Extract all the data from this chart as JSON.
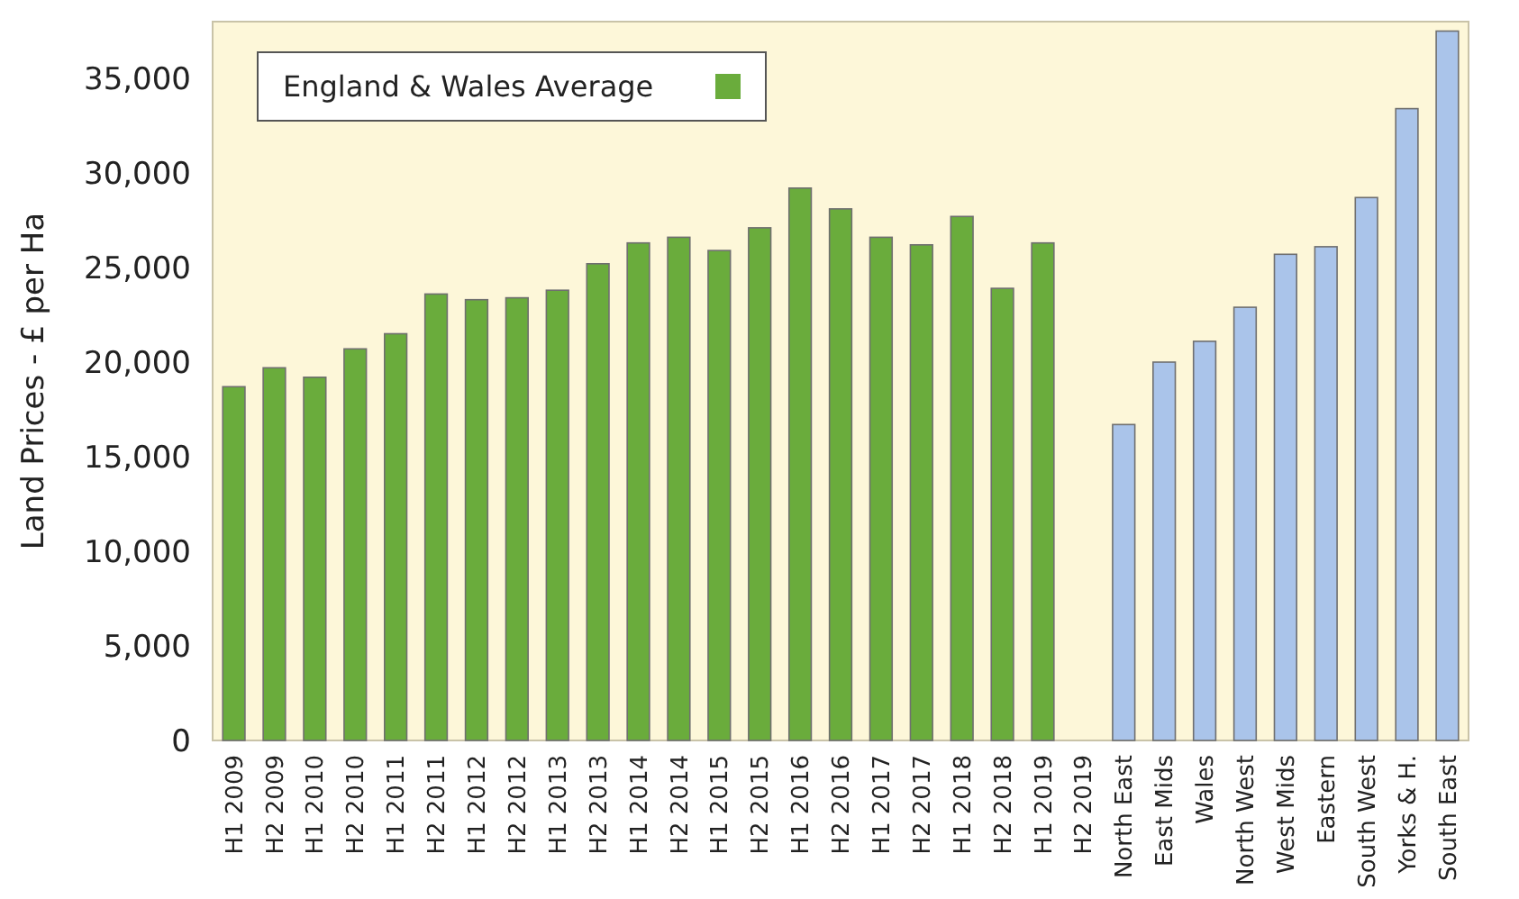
{
  "chart_data": {
    "type": "bar",
    "ylabel": "Land Prices - £ per Ha",
    "categories": [
      "H1 2009",
      "H2 2009",
      "H1 2010",
      "H2 2010",
      "H1 2011",
      "H2 2011",
      "H1 2012",
      "H2 2012",
      "H1 2013",
      "H2 2013",
      "H1 2014",
      "H2 2014",
      "H1 2015",
      "H2 2015",
      "H1 2016",
      "H2 2016",
      "H1 2017",
      "H2 2017",
      "H1 2018",
      "H2 2018",
      "H1 2019",
      "H2 2019",
      "North East",
      "East Mids",
      "Wales",
      "North West",
      "West Mids",
      "Eastern",
      "South West",
      "Yorks & H.",
      "South East"
    ],
    "series": [
      {
        "name": "England & Wales Average",
        "color": "#6aac3c",
        "values": [
          18700,
          19700,
          19200,
          20700,
          21500,
          23600,
          23300,
          23400,
          23800,
          25200,
          26300,
          26600,
          25900,
          27100,
          29200,
          28100,
          26600,
          26200,
          27700,
          23900,
          26300,
          null,
          null,
          null,
          null,
          null,
          null,
          null,
          null,
          null,
          null
        ]
      },
      {
        "color": "#aac4ea",
        "values": [
          null,
          null,
          null,
          null,
          null,
          null,
          null,
          null,
          null,
          null,
          null,
          null,
          null,
          null,
          null,
          null,
          null,
          null,
          null,
          null,
          null,
          null,
          16700,
          20000,
          21100,
          22900,
          25700,
          26100,
          28700,
          33400,
          37500
        ]
      }
    ],
    "ylim": [
      0,
      38000
    ],
    "yticks": [
      {
        "value": 0,
        "label": "0"
      },
      {
        "value": 5000,
        "label": "5,000"
      },
      {
        "value": 10000,
        "label": "10,000"
      },
      {
        "value": 15000,
        "label": "15,000"
      },
      {
        "value": 20000,
        "label": "20,000"
      },
      {
        "value": 25000,
        "label": "25,000"
      },
      {
        "value": 30000,
        "label": "30,000"
      },
      {
        "value": 35000,
        "label": "35,000"
      }
    ],
    "legend": "top left"
  }
}
